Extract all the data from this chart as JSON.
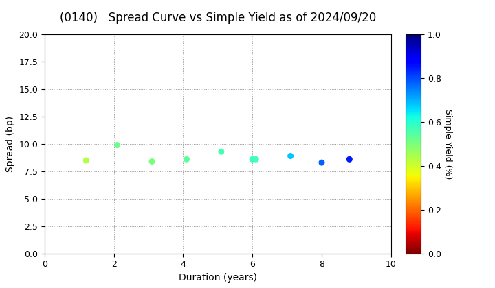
{
  "title": "(0140)   Spread Curve vs Simple Yield as of 2024/09/20",
  "xlabel": "Duration (years)",
  "ylabel": "Spread (bp)",
  "colorbar_label": "Simple Yield (%)",
  "xlim": [
    0,
    10
  ],
  "ylim": [
    0.0,
    20.0
  ],
  "yticks": [
    0.0,
    2.5,
    5.0,
    7.5,
    10.0,
    12.5,
    15.0,
    17.5,
    20.0
  ],
  "xticks": [
    0,
    2,
    4,
    6,
    8,
    10
  ],
  "colorbar_ticks": [
    0.0,
    0.2,
    0.4,
    0.6,
    0.8,
    1.0
  ],
  "points": [
    {
      "duration": 1.2,
      "spread": 8.5,
      "simple_yield": 0.43
    },
    {
      "duration": 2.1,
      "spread": 9.9,
      "simple_yield": 0.52
    },
    {
      "duration": 3.1,
      "spread": 8.4,
      "simple_yield": 0.5
    },
    {
      "duration": 4.1,
      "spread": 8.6,
      "simple_yield": 0.54
    },
    {
      "duration": 5.1,
      "spread": 9.3,
      "simple_yield": 0.57
    },
    {
      "duration": 6.0,
      "spread": 8.6,
      "simple_yield": 0.58
    },
    {
      "duration": 6.1,
      "spread": 8.6,
      "simple_yield": 0.57
    },
    {
      "duration": 7.1,
      "spread": 8.9,
      "simple_yield": 0.68
    },
    {
      "duration": 8.0,
      "spread": 8.3,
      "simple_yield": 0.78
    },
    {
      "duration": 8.8,
      "spread": 8.6,
      "simple_yield": 0.85
    }
  ],
  "colormap": "jet_r",
  "vmin": 0.0,
  "vmax": 1.0,
  "marker_size": 30,
  "background_color": "#ffffff",
  "grid_color": "#999999",
  "grid_style": "dotted",
  "title_fontsize": 12,
  "axis_label_fontsize": 10,
  "tick_fontsize": 9,
  "colorbar_label_fontsize": 9
}
